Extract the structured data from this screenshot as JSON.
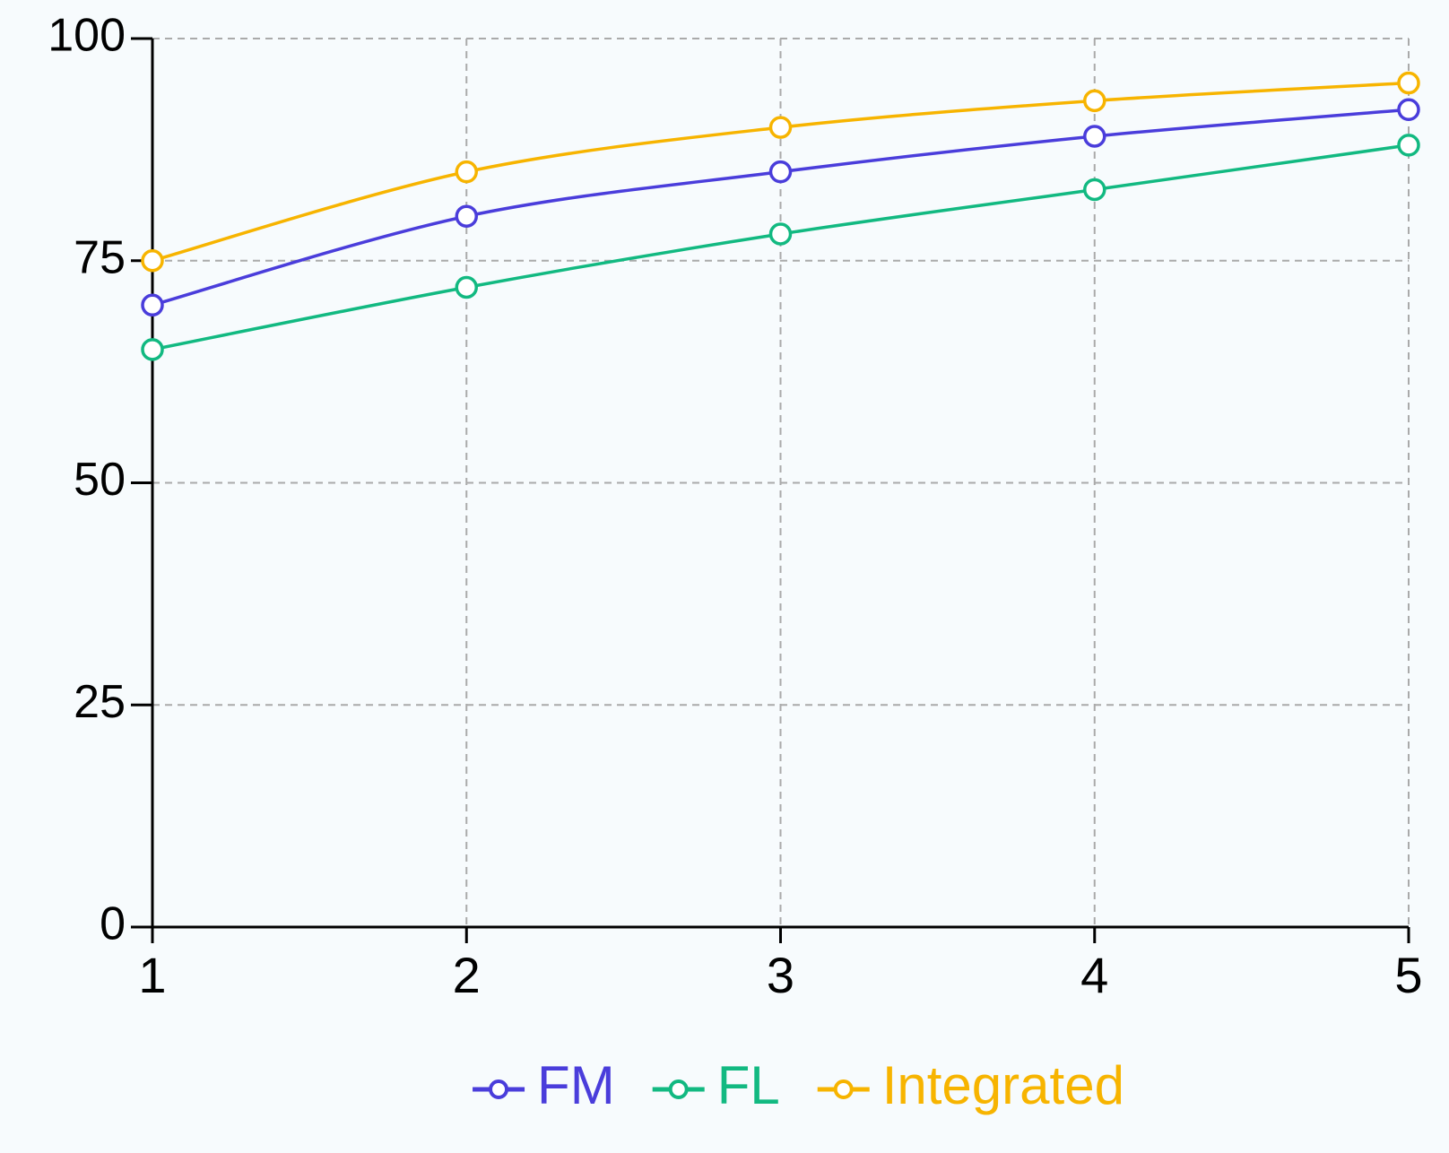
{
  "chart_data": {
    "type": "line",
    "x": [
      1,
      2,
      3,
      4,
      5
    ],
    "xlim": [
      1,
      5
    ],
    "xticks": [
      1,
      2,
      3,
      4,
      5
    ],
    "ylim": [
      0,
      100
    ],
    "yticks": [
      0,
      25,
      50,
      75,
      100
    ],
    "grid": true,
    "legend": "bottom",
    "series": [
      {
        "name": "FM",
        "color": "#4a3ddb",
        "values": [
          70,
          80,
          85,
          89,
          92
        ]
      },
      {
        "name": "FL",
        "color": "#12b981",
        "values": [
          65,
          72,
          78,
          83,
          88
        ]
      },
      {
        "name": "Integrated",
        "color": "#f7b400",
        "values": [
          75,
          85,
          90,
          93,
          95
        ]
      }
    ]
  }
}
